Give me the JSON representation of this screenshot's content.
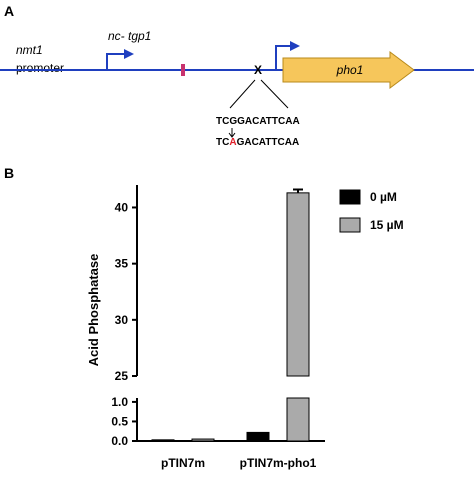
{
  "panel_a": {
    "label": "A",
    "promoter_gene": "nmt1",
    "promoter_word": "promoter",
    "transcript": "nc- tgp1",
    "gene": "pho1",
    "mutation_mark": "X",
    "wild_type_sequence": "TCGGACATTCAA",
    "mutant_sequence": [
      "TC",
      "A",
      "GACATTCAA"
    ]
  },
  "panel_b_label": "B",
  "chart_data": {
    "type": "bar",
    "y_label": "Acid Phosphatase",
    "categories": [
      "pTIN7m",
      "pTIN7m-pho1"
    ],
    "series": [
      {
        "name": "0 µM",
        "color": "#000000",
        "values": [
          0.03,
          0.22
        ]
      },
      {
        "name": "15 µM",
        "color": "#aaaaaa",
        "values": [
          0.05,
          41.3
        ],
        "errors": [
          null,
          0.3
        ]
      }
    ],
    "ylim_lower": [
      0,
      1.1
    ],
    "yticks_lower": [
      {
        "value": 0,
        "label": "0.0"
      },
      {
        "value": 0.5,
        "label": "0.5"
      },
      {
        "value": 1,
        "label": "1.0"
      }
    ],
    "ylim_upper": [
      25,
      42
    ],
    "yticks_upper": [
      25,
      30,
      35,
      40
    ],
    "legend": "top-right"
  }
}
